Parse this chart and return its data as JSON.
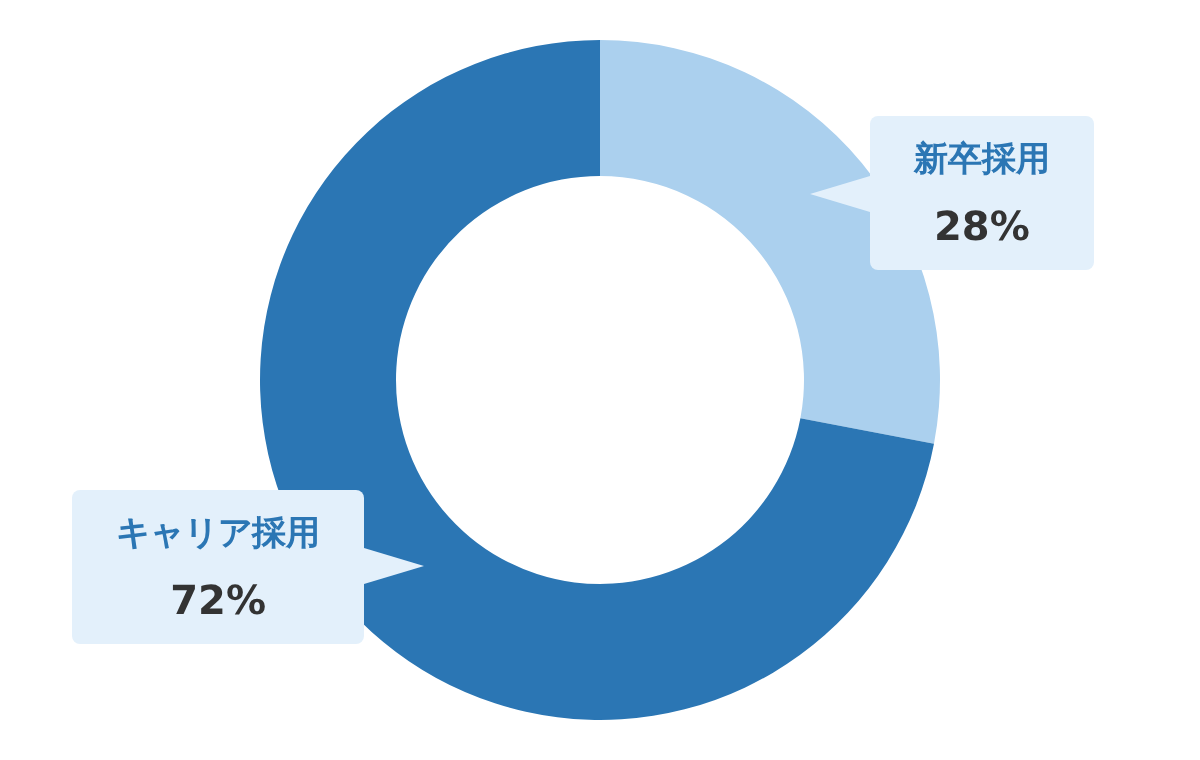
{
  "chart_data": {
    "type": "donut",
    "categories": [
      "新卒採用",
      "キャリア採用"
    ],
    "values": [
      28,
      72
    ],
    "colors": [
      "#abd0ee",
      "#2b76b4"
    ],
    "value_labels": [
      "28%",
      "72%"
    ]
  }
}
